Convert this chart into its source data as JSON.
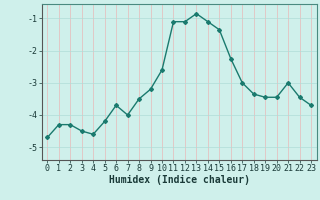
{
  "x": [
    0,
    1,
    2,
    3,
    4,
    5,
    6,
    7,
    8,
    9,
    10,
    11,
    12,
    13,
    14,
    15,
    16,
    17,
    18,
    19,
    20,
    21,
    22,
    23
  ],
  "y": [
    -4.7,
    -4.3,
    -4.3,
    -4.5,
    -4.6,
    -4.2,
    -3.7,
    -4.0,
    -3.5,
    -3.2,
    -2.6,
    -1.1,
    -1.1,
    -0.85,
    -1.1,
    -1.35,
    -2.25,
    -3.0,
    -3.35,
    -3.45,
    -3.45,
    -3.0,
    -3.45,
    -3.7
  ],
  "line_color": "#1a7a6e",
  "marker": "D",
  "marker_size": 2.0,
  "bg_color": "#cff0eb",
  "grid_color": "#b0ddd8",
  "grid_color_red": "#e8b0b0",
  "xlabel": "Humidex (Indice chaleur)",
  "xlabel_fontsize": 7,
  "yticks": [
    -5,
    -4,
    -3,
    -2,
    -1
  ],
  "xtick_labels": [
    "0",
    "1",
    "2",
    "3",
    "4",
    "5",
    "6",
    "7",
    "8",
    "9",
    "10",
    "11",
    "12",
    "13",
    "14",
    "15",
    "16",
    "17",
    "18",
    "19",
    "20",
    "21",
    "22",
    "23"
  ],
  "ylim": [
    -5.4,
    -0.55
  ],
  "xlim": [
    -0.5,
    23.5
  ],
  "tick_fontsize": 6,
  "line_width": 1.0
}
